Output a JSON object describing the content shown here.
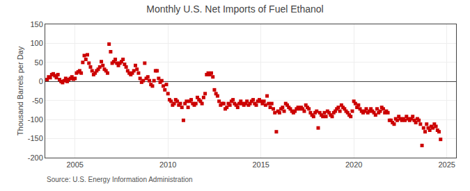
{
  "chart_data": {
    "type": "scatter",
    "title": "Monthly U.S. Net Imports of Fuel Ethanol",
    "ylabel": "Thousand Barrels per Day",
    "annotations": [
      "Source: U.S. Energy Information Administration"
    ],
    "color": "#cc0000",
    "marker": "square",
    "grid": true,
    "xlim": [
      2003.4,
      2025.5
    ],
    "xticks": [
      2005,
      2010,
      2015,
      2020,
      2025
    ],
    "ylim": [
      -200,
      150
    ],
    "yticks": [
      -200,
      -150,
      -100,
      -50,
      0,
      50,
      100,
      150
    ],
    "x": [
      2003.5,
      2003.583,
      2003.667,
      2003.75,
      2003.833,
      2003.917,
      2004.0,
      2004.083,
      2004.167,
      2004.25,
      2004.333,
      2004.417,
      2004.5,
      2004.583,
      2004.667,
      2004.75,
      2004.833,
      2004.917,
      2005.0,
      2005.083,
      2005.167,
      2005.25,
      2005.333,
      2005.417,
      2005.5,
      2005.583,
      2005.667,
      2005.75,
      2005.833,
      2005.917,
      2006.0,
      2006.083,
      2006.167,
      2006.25,
      2006.333,
      2006.417,
      2006.5,
      2006.583,
      2006.667,
      2006.75,
      2006.833,
      2006.917,
      2007.0,
      2007.083,
      2007.167,
      2007.25,
      2007.333,
      2007.417,
      2007.5,
      2007.583,
      2007.667,
      2007.75,
      2007.833,
      2007.917,
      2008.0,
      2008.083,
      2008.167,
      2008.25,
      2008.333,
      2008.417,
      2008.5,
      2008.583,
      2008.667,
      2008.75,
      2008.833,
      2008.917,
      2009.0,
      2009.083,
      2009.167,
      2009.25,
      2009.333,
      2009.417,
      2009.5,
      2009.583,
      2009.667,
      2009.75,
      2009.833,
      2009.917,
      2010.0,
      2010.083,
      2010.167,
      2010.25,
      2010.333,
      2010.417,
      2010.5,
      2010.583,
      2010.667,
      2010.75,
      2010.833,
      2010.917,
      2011.0,
      2011.083,
      2011.167,
      2011.25,
      2011.333,
      2011.417,
      2011.5,
      2011.583,
      2011.667,
      2011.75,
      2011.833,
      2011.917,
      2012.0,
      2012.083,
      2012.167,
      2012.25,
      2012.333,
      2012.417,
      2012.5,
      2012.583,
      2012.667,
      2012.75,
      2012.833,
      2012.917,
      2013.0,
      2013.083,
      2013.167,
      2013.25,
      2013.333,
      2013.417,
      2013.5,
      2013.583,
      2013.667,
      2013.75,
      2013.833,
      2013.917,
      2014.0,
      2014.083,
      2014.167,
      2014.25,
      2014.333,
      2014.417,
      2014.5,
      2014.583,
      2014.667,
      2014.75,
      2014.833,
      2014.917,
      2015.0,
      2015.083,
      2015.167,
      2015.25,
      2015.333,
      2015.417,
      2015.5,
      2015.583,
      2015.667,
      2015.75,
      2015.833,
      2015.917,
      2016.0,
      2016.083,
      2016.167,
      2016.25,
      2016.333,
      2016.417,
      2016.5,
      2016.583,
      2016.667,
      2016.75,
      2016.833,
      2016.917,
      2017.0,
      2017.083,
      2017.167,
      2017.25,
      2017.333,
      2017.417,
      2017.5,
      2017.583,
      2017.667,
      2017.75,
      2017.833,
      2017.917,
      2018.0,
      2018.083,
      2018.167,
      2018.25,
      2018.333,
      2018.417,
      2018.5,
      2018.583,
      2018.667,
      2018.75,
      2018.833,
      2018.917,
      2019.0,
      2019.083,
      2019.167,
      2019.25,
      2019.333,
      2019.417,
      2019.5,
      2019.583,
      2019.667,
      2019.75,
      2019.833,
      2019.917,
      2020.0,
      2020.083,
      2020.167,
      2020.25,
      2020.333,
      2020.417,
      2020.5,
      2020.583,
      2020.667,
      2020.75,
      2020.833,
      2020.917,
      2021.0,
      2021.083,
      2021.167,
      2021.25,
      2021.333,
      2021.417,
      2021.5,
      2021.583,
      2021.667,
      2021.75,
      2021.833,
      2021.917,
      2022.0,
      2022.083,
      2022.167,
      2022.25,
      2022.333,
      2022.417,
      2022.5,
      2022.583,
      2022.667,
      2022.75,
      2022.833,
      2022.917,
      2023.0,
      2023.083,
      2023.167,
      2023.25,
      2023.333,
      2023.417,
      2023.5,
      2023.583,
      2023.667,
      2023.75,
      2023.833,
      2023.917,
      2024.0,
      2024.083,
      2024.167,
      2024.25,
      2024.333,
      2024.417,
      2024.5,
      2024.583,
      2024.667
    ],
    "values": [
      5,
      12,
      10,
      18,
      20,
      15,
      10,
      18,
      5,
      0,
      -3,
      2,
      8,
      0,
      5,
      8,
      12,
      6,
      8,
      22,
      25,
      28,
      22,
      50,
      68,
      58,
      70,
      48,
      38,
      28,
      18,
      22,
      28,
      32,
      38,
      52,
      42,
      32,
      28,
      22,
      98,
      78,
      48,
      52,
      58,
      48,
      42,
      48,
      52,
      58,
      45,
      38,
      28,
      22,
      18,
      22,
      28,
      42,
      32,
      22,
      8,
      -2,
      2,
      48,
      8,
      12,
      2,
      -8,
      -12,
      2,
      28,
      28,
      8,
      -2,
      2,
      -12,
      -22,
      -8,
      -32,
      -48,
      -52,
      -62,
      -58,
      -48,
      -52,
      -62,
      -58,
      -68,
      -102,
      -58,
      -52,
      -68,
      -52,
      -48,
      -58,
      -62,
      -58,
      -42,
      -48,
      -52,
      -58,
      -42,
      -32,
      18,
      22,
      18,
      22,
      12,
      -22,
      -32,
      -38,
      -52,
      -62,
      -58,
      -58,
      -72,
      -68,
      -58,
      -62,
      -52,
      -48,
      -58,
      -62,
      -68,
      -58,
      -52,
      -58,
      -62,
      -58,
      -52,
      -62,
      -58,
      -52,
      -48,
      -58,
      -62,
      -52,
      -48,
      -52,
      -58,
      -52,
      -62,
      -38,
      -58,
      -68,
      -58,
      -72,
      -82,
      -132,
      -78,
      -82,
      -72,
      -68,
      -78,
      -58,
      -62,
      -68,
      -72,
      -78,
      -82,
      -78,
      -72,
      -68,
      -72,
      -68,
      -72,
      -78,
      -62,
      -68,
      -72,
      -82,
      -88,
      -92,
      -82,
      -78,
      -122,
      -82,
      -88,
      -92,
      -82,
      -92,
      -78,
      -82,
      -88,
      -92,
      -82,
      -78,
      -72,
      -68,
      -78,
      -62,
      -68,
      -72,
      -78,
      -82,
      -88,
      -92,
      -78,
      -52,
      -58,
      -68,
      -62,
      -72,
      -78,
      -82,
      -78,
      -72,
      -82,
      -78,
      -72,
      -78,
      -82,
      -88,
      -72,
      -82,
      -78,
      -68,
      -72,
      -82,
      -78,
      -82,
      -102,
      -102,
      -108,
      -112,
      -98,
      -102,
      -92,
      -98,
      -102,
      -98,
      -102,
      -92,
      -98,
      -102,
      -98,
      -92,
      -102,
      -108,
      -98,
      -102,
      -112,
      -168,
      -122,
      -132,
      -112,
      -122,
      -128,
      -118,
      -122,
      -112,
      -118,
      -128,
      -132,
      -152
    ]
  }
}
